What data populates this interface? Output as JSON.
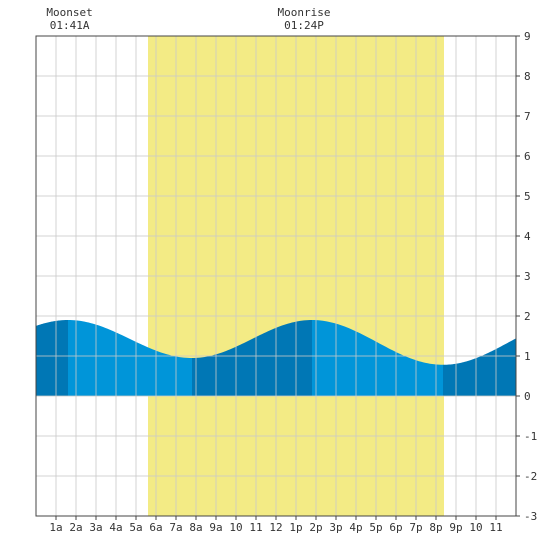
{
  "chart_data": {
    "type": "area",
    "title": "",
    "xlabel": "",
    "ylabel": "",
    "xlim": [
      0,
      24
    ],
    "ylim": [
      -3,
      9
    ],
    "yticks": [
      -3,
      -2,
      -1,
      0,
      1,
      2,
      3,
      4,
      5,
      6,
      7,
      8,
      9
    ],
    "xticks": [
      {
        "x": 1,
        "label": "1a"
      },
      {
        "x": 2,
        "label": "2a"
      },
      {
        "x": 3,
        "label": "3a"
      },
      {
        "x": 4,
        "label": "4a"
      },
      {
        "x": 5,
        "label": "5a"
      },
      {
        "x": 6,
        "label": "6a"
      },
      {
        "x": 7,
        "label": "7a"
      },
      {
        "x": 8,
        "label": "8a"
      },
      {
        "x": 9,
        "label": "9a"
      },
      {
        "x": 10,
        "label": "10"
      },
      {
        "x": 11,
        "label": "11"
      },
      {
        "x": 12,
        "label": "12"
      },
      {
        "x": 13,
        "label": "1p"
      },
      {
        "x": 14,
        "label": "2p"
      },
      {
        "x": 15,
        "label": "3p"
      },
      {
        "x": 16,
        "label": "4p"
      },
      {
        "x": 17,
        "label": "5p"
      },
      {
        "x": 18,
        "label": "6p"
      },
      {
        "x": 19,
        "label": "7p"
      },
      {
        "x": 20,
        "label": "8p"
      },
      {
        "x": 21,
        "label": "9p"
      },
      {
        "x": 22,
        "label": "10"
      },
      {
        "x": 23,
        "label": "11"
      }
    ],
    "grid": true,
    "daylight": [
      5.6,
      20.4
    ],
    "tide_extremes": [
      {
        "x": 1.6,
        "y": 1.9
      },
      {
        "x": 7.8,
        "y": 0.95
      },
      {
        "x": 13.8,
        "y": 1.9
      },
      {
        "x": 20.35,
        "y": 0.78
      }
    ],
    "tide_start": {
      "x": 0,
      "y": 1.75
    },
    "tide_end": {
      "x": 24,
      "y": 1.58
    },
    "annotations": [
      {
        "title": "Moonset",
        "time": "01:41A",
        "x": 1.68
      },
      {
        "title": "Moonrise",
        "time": "01:24P",
        "x": 13.4
      }
    ],
    "colors": {
      "daylight": "#f3eb85",
      "tide_light": "#0095d9",
      "tide_dark": "#0077b5",
      "grid": "#c8c8c8",
      "axis": "#444444"
    }
  }
}
